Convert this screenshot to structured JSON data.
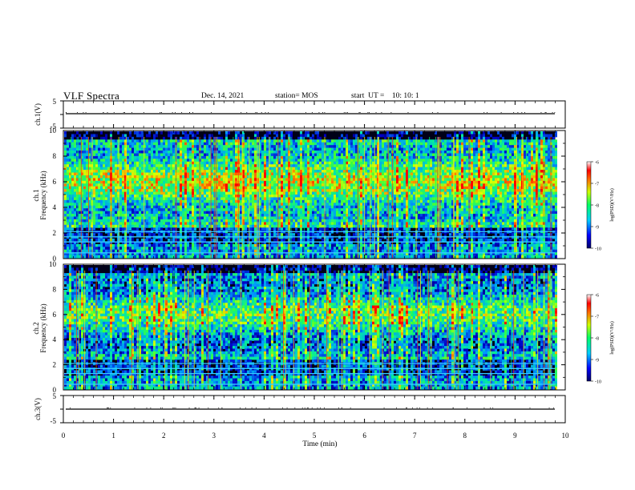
{
  "header": {
    "title": "VLF Spectra",
    "date": "Dec. 14, 2021",
    "station": "station= MOS",
    "start": "start  UT =    10: 10: 1"
  },
  "colors": {
    "background": "#ffffff",
    "spectrogram_background": "#000000",
    "trace": "#000000"
  },
  "chart_data": [
    {
      "type": "line",
      "panel": "ch1 waveform",
      "ylabel": "ch.1(V)",
      "ylim": [
        -5,
        5
      ],
      "yticks": [
        "5",
        "-5"
      ],
      "xlim": [
        0,
        10
      ],
      "series": [
        {
          "values_note": "",
          "x": [
            0,
            9.8
          ],
          "y": [
            0,
            0
          ]
        }
      ]
    },
    {
      "type": "heatmap",
      "panel": "ch1 spectrogram",
      "ylabel_channel": "ch.1",
      "ylabel": "Frequency (kHz)",
      "ylim": [
        0,
        10
      ],
      "yticks": [
        "0",
        "2",
        "4",
        "6",
        "8",
        "10"
      ],
      "xlim": [
        0,
        9.8
      ],
      "colorbar": {
        "label": "log(PSD)(V²/Hz)",
        "range": [
          -10,
          -6
        ],
        "ticks": [
          "-6",
          "-7",
          "-8",
          "-9",
          "-10"
        ]
      },
      "lines_khz": [
        0.45,
        1.3,
        1.7,
        2.1
      ]
    },
    {
      "type": "heatmap",
      "panel": "ch2 spectrogram",
      "ylabel_channel": "ch.2",
      "ylabel": "Frequency (kHz)",
      "ylim": [
        0,
        10
      ],
      "yticks": [
        "0",
        "2",
        "4",
        "6",
        "8",
        "10"
      ],
      "xlim": [
        0,
        9.8
      ],
      "colorbar": {
        "label": "log(PSD)(V²/Hz)",
        "range": [
          -10,
          -6
        ],
        "ticks": [
          "-6",
          "-7",
          "-8",
          "-9",
          "-10"
        ]
      },
      "lines_khz": [
        0.45,
        1.3,
        1.7,
        2.1
      ]
    },
    {
      "type": "line",
      "panel": "ch3 waveform",
      "ylabel": "ch.3(V)",
      "ylim": [
        -5,
        5
      ],
      "yticks": [
        "5",
        "-5"
      ],
      "xlim": [
        0,
        10
      ],
      "series": [
        {
          "x": [
            0,
            9.8
          ],
          "y": [
            0,
            0
          ]
        }
      ]
    }
  ],
  "xaxis": {
    "label": "Time  (min)",
    "ticks": [
      "0",
      "1",
      "2",
      "3",
      "4",
      "5",
      "6",
      "7",
      "8",
      "9",
      "10"
    ],
    "range": [
      0,
      10
    ]
  }
}
